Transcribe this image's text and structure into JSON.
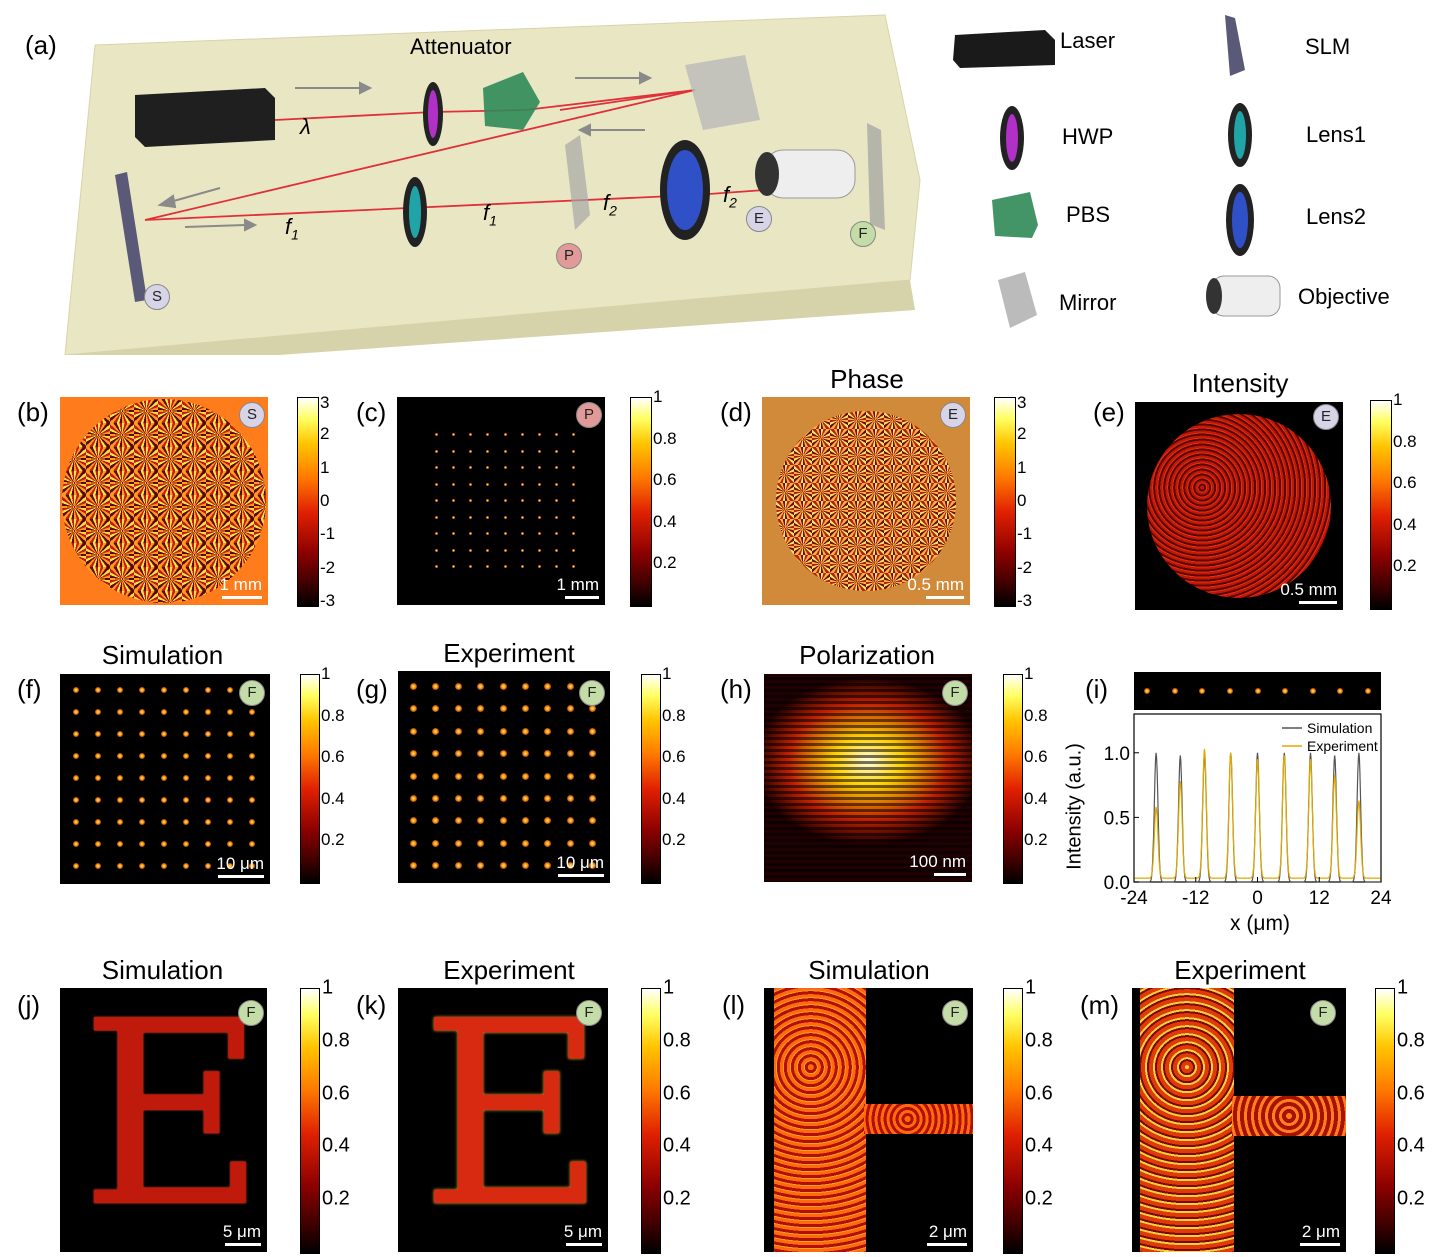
{
  "figure": {
    "panel_labels": {
      "a": "(a)",
      "b": "(b)",
      "c": "(c)",
      "d": "(d)",
      "e": "(e)",
      "f": "(f)",
      "g": "(g)",
      "h": "(h)",
      "i": "(i)",
      "j": "(j)",
      "k": "(k)",
      "l": "(l)",
      "m": "(m)"
    },
    "setup": {
      "attenuator": "Attenuator",
      "lambda": "λ",
      "f1a": "f",
      "f1b": "f",
      "f2a": "f",
      "f2b": "f",
      "sub1": "1",
      "sub2": "2",
      "badges": {
        "S": "S",
        "P": "P",
        "E": "E",
        "F": "F"
      }
    },
    "legend": {
      "laser": "Laser",
      "slm": "SLM",
      "hwp": "HWP",
      "lens1": "Lens1",
      "pbs": "PBS",
      "lens2": "Lens2",
      "mirror": "Mirror",
      "objective": "Objective"
    },
    "titles": {
      "d": "Phase",
      "e": "Intensity",
      "f": "Simulation",
      "g": "Experiment",
      "h": "Polarization",
      "j": "Simulation",
      "k": "Experiment",
      "l": "Simulation",
      "m": "Experiment"
    },
    "scalebars": {
      "b": "1 mm",
      "c": "1 mm",
      "d": "0.5 mm",
      "e": "0.5 mm",
      "f": "10 μm",
      "g": "10 μm",
      "h": "100 nm",
      "j": "5 μm",
      "k": "5 μm",
      "l": "2 μm",
      "m": "2 μm"
    },
    "phase_ticks": [
      "3",
      "2",
      "1",
      "0",
      "-1",
      "-2",
      "-3"
    ],
    "intensity_ticks": [
      "1",
      "0.8",
      "0.6",
      "0.4",
      "0.2"
    ]
  },
  "chart_data": {
    "type": "line",
    "xlabel": "x (μm)",
    "ylabel": "Intensity (a.u.)",
    "xlim": [
      -24,
      24
    ],
    "ylim": [
      0,
      1.3
    ],
    "xticks": [
      "-24",
      "-12",
      "0",
      "12",
      "24"
    ],
    "yticks": [
      "0.0",
      "0.5",
      "1.0"
    ],
    "legend": "top-right",
    "series": [
      {
        "name": "Simulation",
        "color": "#555555",
        "peaks_x": [
          -19.7,
          -15,
          -10.3,
          -5.2,
          0,
          5.2,
          10.3,
          15,
          19.7
        ],
        "peaks_y": [
          1.0,
          0.98,
          1.0,
          1.0,
          1.0,
          1.0,
          1.0,
          0.98,
          1.0
        ]
      },
      {
        "name": "Experiment",
        "color": "#e0a800",
        "peaks_x": [
          -19.7,
          -15,
          -10.3,
          -5.2,
          0,
          5.2,
          10.3,
          15,
          19.7
        ],
        "peaks_y": [
          0.55,
          0.75,
          1.0,
          0.97,
          0.92,
          0.95,
          0.92,
          0.8,
          0.6
        ]
      }
    ]
  }
}
